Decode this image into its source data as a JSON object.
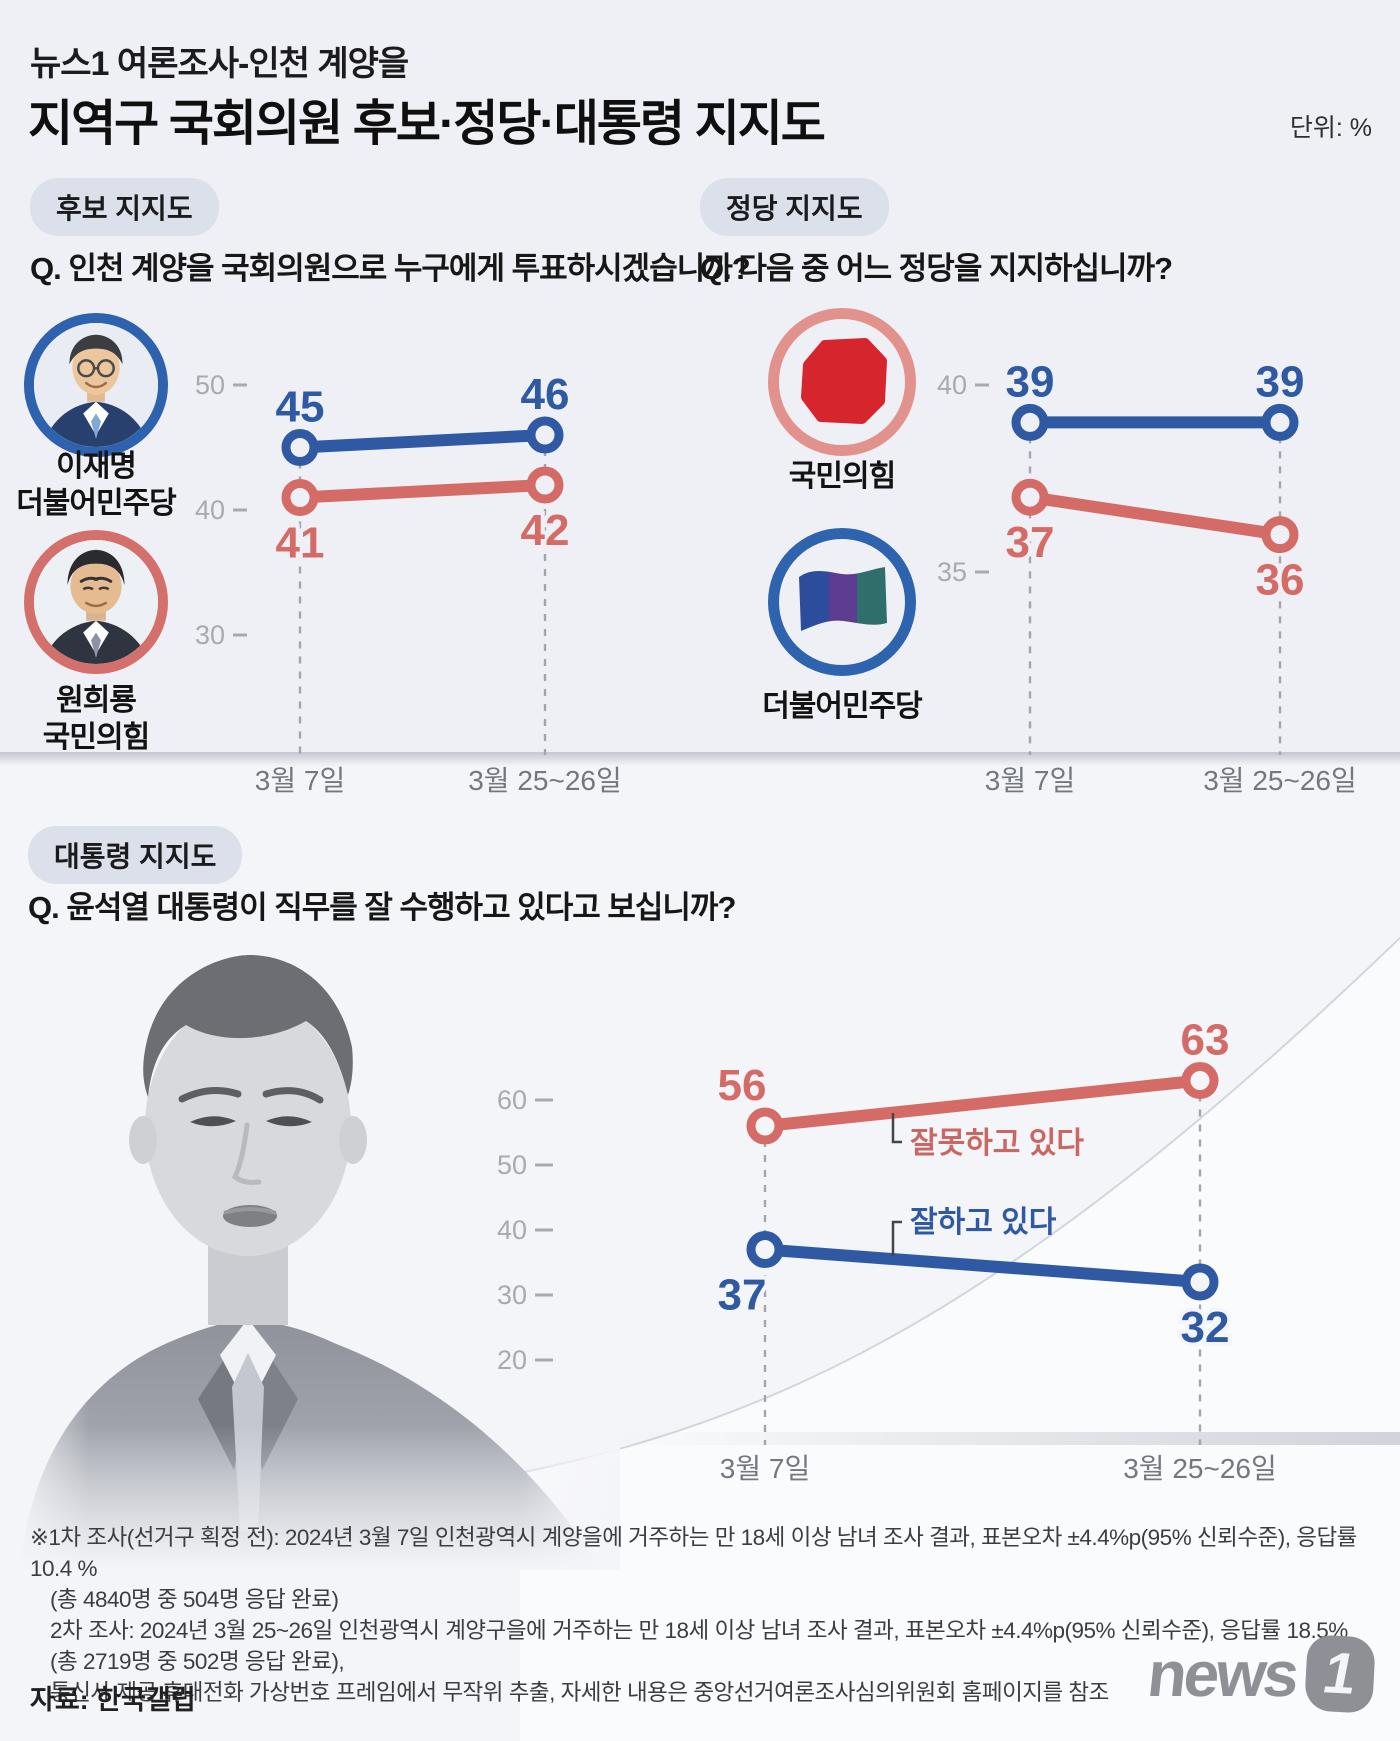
{
  "header": {
    "title_small": "뉴스1 여론조사-인천 계양을",
    "title_large": "지역구 국회의원 후보·정당·대통령 지지도",
    "unit": "단위: %"
  },
  "colors": {
    "blue": "#2f5aa3",
    "red": "#d46b67",
    "background_top": "#eff0f5",
    "background_bottom": "#f4f5f9",
    "badge_bg": "#dbe0eb",
    "tick_gray": "#a7aab1",
    "date_gray": "#73777f"
  },
  "sections": {
    "candidate": {
      "badge": "후보 지지도",
      "question": "Q. 인천 계양을 국회의원으로 누구에게 투표하시겠습니까?",
      "entities": [
        {
          "name": "이재명",
          "party": "더불어민주당",
          "ring_color": "#2e62ae"
        },
        {
          "name": "원희룡",
          "party": "국민의힘",
          "ring_color": "#d4706b"
        }
      ]
    },
    "party": {
      "badge": "정당 지지도",
      "question": "Q. 다음 중 어느 정당을 지지하십니까?",
      "entities": [
        {
          "name": "국민의힘",
          "ring_color": "#e2928c"
        },
        {
          "name": "더불어민주당",
          "ring_color": "#2e64ad"
        }
      ]
    },
    "president": {
      "badge": "대통령 지지도",
      "question": "Q. 윤석열 대통령이 직무를 잘 수행하고 있다고 보십니까?",
      "annotations": {
        "negative": "잘못하고 있다",
        "positive": "잘하고 있다"
      }
    }
  },
  "chart_data": [
    {
      "type": "line",
      "title": "후보 지지도",
      "categories": [
        "3월 7일",
        "3월 25~26일"
      ],
      "series": [
        {
          "name": "이재명(더불어민주당)",
          "color": "#2f5aa3",
          "values": [
            45,
            46
          ]
        },
        {
          "name": "원희룡(국민의힘)",
          "color": "#d46b67",
          "values": [
            41,
            42
          ]
        }
      ],
      "yticks": [
        50,
        40,
        30
      ],
      "ylim": [
        24,
        53
      ],
      "grid": "dashed-columns",
      "legend": "none"
    },
    {
      "type": "line",
      "title": "정당 지지도",
      "categories": [
        "3월 7일",
        "3월 25~26일"
      ],
      "series": [
        {
          "name": "더불어민주당",
          "color": "#2f5aa3",
          "values": [
            39,
            39
          ]
        },
        {
          "name": "국민의힘",
          "color": "#d46b67",
          "values": [
            37,
            36
          ]
        }
      ],
      "yticks": [
        40,
        35
      ],
      "ylim": [
        33,
        41
      ],
      "grid": "dashed-columns",
      "legend": "none"
    },
    {
      "type": "line",
      "title": "대통령 지지도",
      "categories": [
        "3월 7일",
        "3월 25~26일"
      ],
      "series": [
        {
          "name": "잘못하고 있다",
          "color": "#d46b67",
          "values": [
            56,
            63
          ]
        },
        {
          "name": "잘하고 있다",
          "color": "#2f5aa3",
          "values": [
            37,
            32
          ]
        }
      ],
      "yticks": [
        60,
        50,
        40,
        30,
        20
      ],
      "ylim": [
        13,
        67
      ],
      "grid": "dashed-columns",
      "legend": "inline-annotations"
    }
  ],
  "footnotes": {
    "line1": "※1차 조사(선거구 획정 전): 2024년 3월 7일 인천광역시 계양을에 거주하는 만 18세 이상 남녀 조사 결과, 표본오차 ±4.4%p(95% 신뢰수준), 응답률 10.4 %",
    "line2": "(총 4840명 중 504명 응답 완료)",
    "line3": "2차 조사: 2024년 3월 25~26일 인천광역시 계양구을에 거주하는 만 18세 이상 남녀 조사 결과, 표본오차 ±4.4%p(95% 신뢰수준), 응답률 18.5% (총 2719명 중 502명 응답 완료),",
    "line4": "통신사 제공 휴대전화 가상번호 프레임에서 무작위 추출, 자세한 내용은 중앙선거여론조사심의위원회 홈페이지를 참조",
    "source": "자료: 한국갤럽"
  },
  "logo": {
    "word": "news",
    "one": "1"
  }
}
